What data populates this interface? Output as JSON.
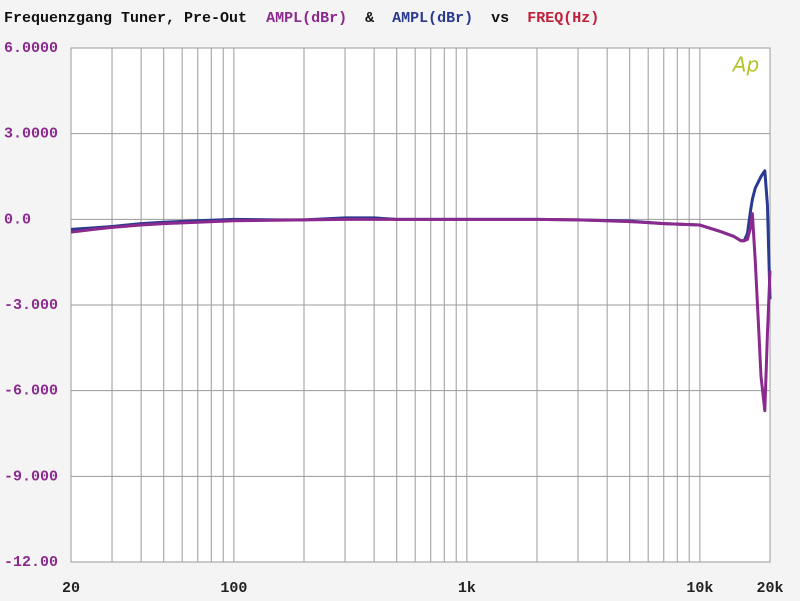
{
  "chart_data": {
    "type": "line",
    "title": "Frequenzgang Tuner, Pre-Out",
    "legend_joiner": "&",
    "x_joiner": "vs",
    "x_label": "FREQ(Hz)",
    "x_label_color": "#c0203a",
    "logo": "Ap",
    "xscale": "log",
    "grid": true,
    "xlim": [
      20,
      20000
    ],
    "ylim": [
      -12,
      6
    ],
    "xticks": [
      20,
      100,
      {
        "value": 1000,
        "label": "1k"
      },
      {
        "value": 10000,
        "label": "10k"
      },
      {
        "value": 20000,
        "label": "20k"
      }
    ],
    "x_minor_ticks": [
      30,
      40,
      50,
      60,
      70,
      80,
      90,
      200,
      300,
      400,
      500,
      600,
      700,
      800,
      900,
      2000,
      3000,
      4000,
      5000,
      6000,
      7000,
      8000,
      9000
    ],
    "yticks": [
      {
        "value": 6,
        "label": "6.0000"
      },
      {
        "value": 3,
        "label": "3.0000"
      },
      {
        "value": 0,
        "label": "0.0"
      },
      {
        "value": -3,
        "label": "-3.000"
      },
      {
        "value": -6,
        "label": "-6.000"
      },
      {
        "value": -9,
        "label": "-9.000"
      },
      {
        "value": -12,
        "label": "-12.00"
      }
    ],
    "x": [
      20,
      25,
      30,
      40,
      50,
      70,
      100,
      150,
      200,
      300,
      400,
      500,
      700,
      1000,
      1500,
      2000,
      3000,
      5000,
      7000,
      10000,
      12000,
      14000,
      15000,
      15500,
      16000,
      16500,
      16800,
      17300,
      17800,
      18300,
      19000,
      19500,
      20000
    ],
    "series": [
      {
        "name": "AMPL(dBr)",
        "color": "#8b2a8e",
        "values": [
          -0.45,
          -0.35,
          -0.28,
          -0.2,
          -0.15,
          -0.1,
          -0.05,
          -0.03,
          -0.02,
          0,
          0,
          0,
          0,
          0,
          0,
          0,
          -0.02,
          -0.08,
          -0.15,
          -0.2,
          -0.4,
          -0.6,
          -0.75,
          -0.75,
          -0.7,
          -0.3,
          0.2,
          -1.5,
          -3.5,
          -5.5,
          -6.7,
          -4,
          -1.8
        ]
      },
      {
        "name": "AMPL(dBr)",
        "color": "#2a3a8e",
        "values": [
          -0.35,
          -0.3,
          -0.25,
          -0.15,
          -0.1,
          -0.05,
          0,
          -0.02,
          -0.02,
          0.05,
          0.05,
          0,
          0,
          0,
          0,
          0,
          -0.02,
          -0.06,
          -0.15,
          -0.2,
          -0.4,
          -0.6,
          -0.75,
          -0.75,
          -0.5,
          0.3,
          0.7,
          1.1,
          1.3,
          1.5,
          1.7,
          0.5,
          -2.8
        ]
      }
    ]
  }
}
